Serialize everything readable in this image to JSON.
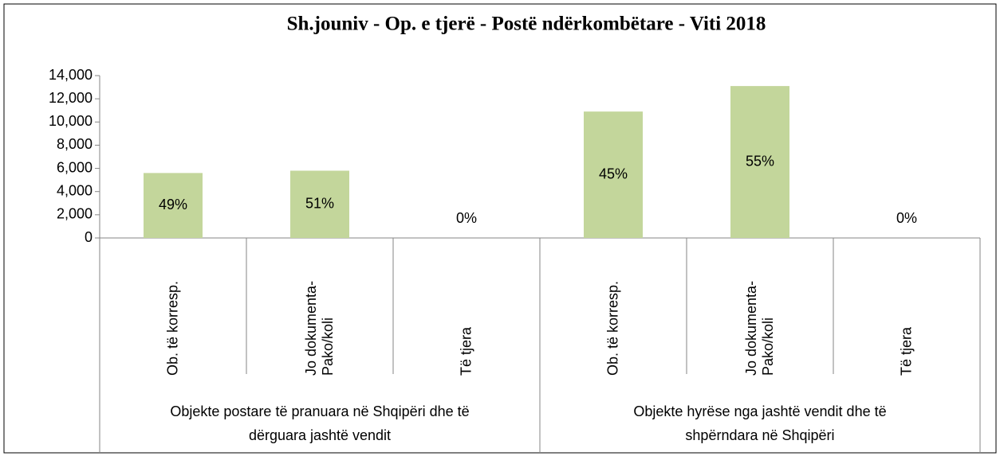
{
  "chart_data": {
    "type": "bar",
    "title": "Sh.jouniv - Op. e tjerë - Postë ndërkombëtare - Viti  2018",
    "color": "#c3d69b",
    "ylim": [
      0,
      14000
    ],
    "yticks": [
      0,
      {
        "value": 2000,
        "label": "2,000"
      },
      {
        "value": 4000,
        "label": "4,000"
      },
      {
        "value": 6000,
        "label": "6,000"
      },
      {
        "value": 8000,
        "label": "8,000"
      },
      {
        "value": 10000,
        "label": "10,000"
      },
      {
        "value": 12000,
        "label": "12,000"
      },
      {
        "value": 14000,
        "label": "14,000"
      }
    ],
    "groups": [
      {
        "name": "Objekte postare të pranuara në Shqipëri dhe të dërguara jashtë vendit",
        "categories": [
          "Ob. të korresp.",
          "Jo dokumenta-Pako/koli",
          "Të tjera"
        ],
        "values": [
          5600,
          5800,
          0
        ],
        "data_labels": [
          "49%",
          "51%",
          "0%"
        ]
      },
      {
        "name": "Objekte hyrëse nga jashtë vendit dhe të shpërndara në Shqipëri",
        "categories": [
          "Ob. të korresp.",
          "Jo dokumenta-Pako/koli",
          "Të tjera"
        ],
        "values": [
          10900,
          13100,
          0
        ],
        "data_labels": [
          "45%",
          "55%",
          "0%"
        ]
      }
    ]
  }
}
